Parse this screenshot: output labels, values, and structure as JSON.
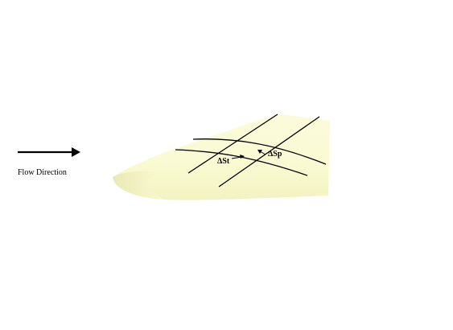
{
  "diagram": {
    "flow_label": "Flow Direction",
    "delta_st_label": "ΔSt",
    "delta_sp_label": "ΔSp",
    "colors": {
      "wing_fill": "#fafad2",
      "wing_shade": "#f0f0bf",
      "line": "#000000",
      "background": "#ffffff"
    }
  }
}
